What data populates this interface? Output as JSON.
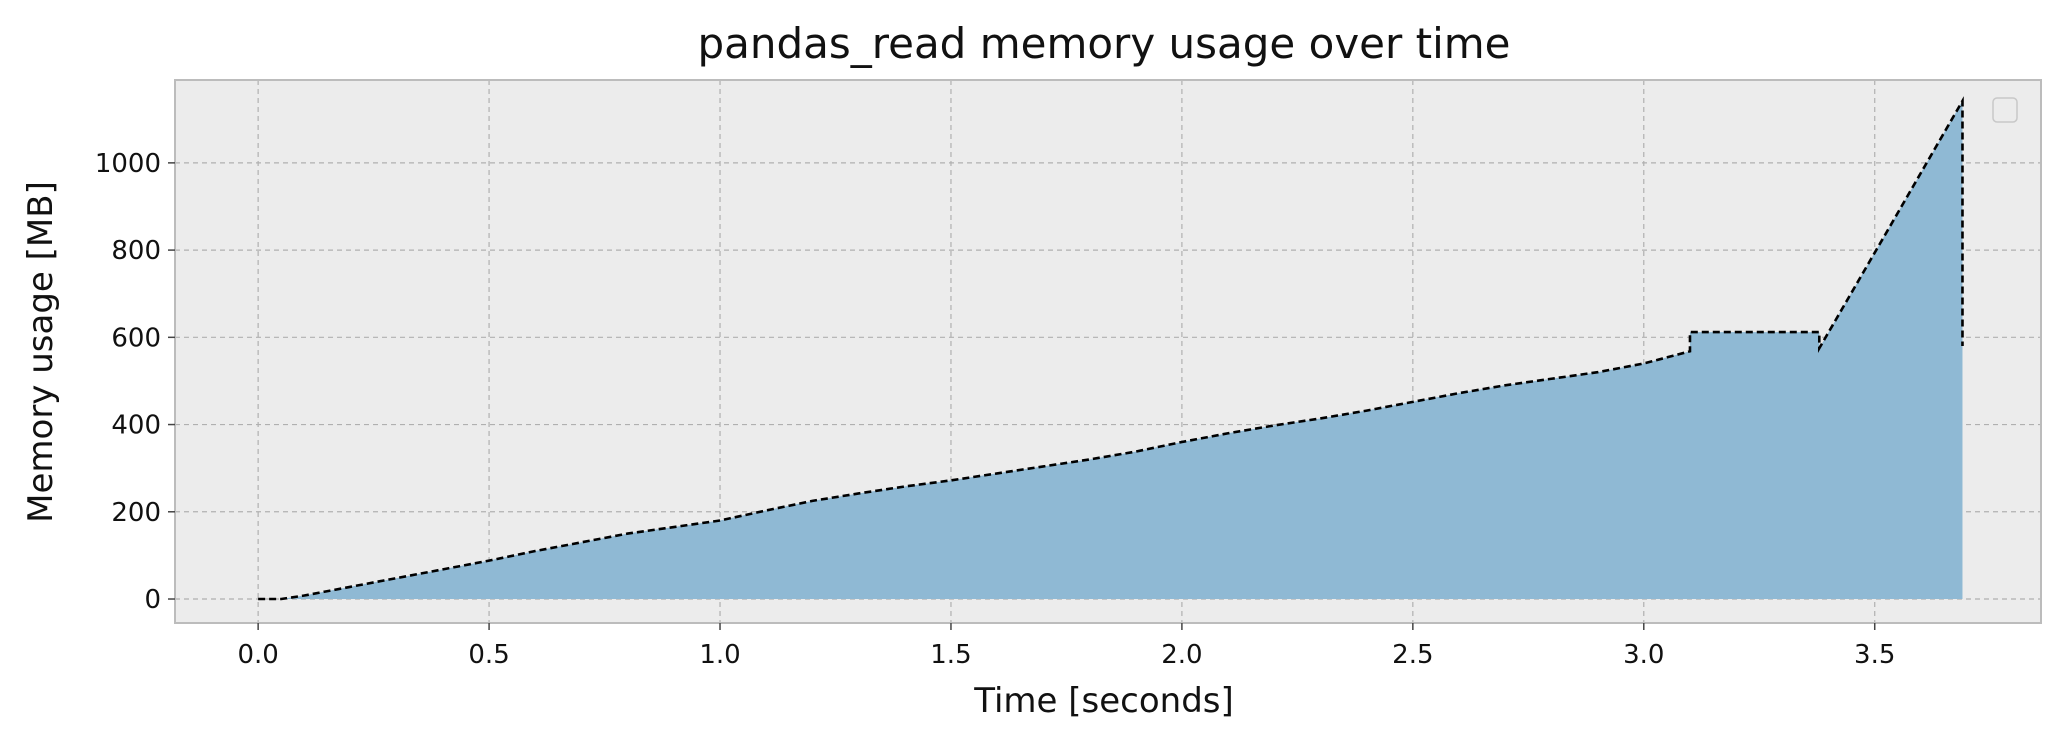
{
  "chart_data": {
    "type": "area",
    "title": "pandas_read memory usage over time",
    "xlabel": "Time [seconds]",
    "ylabel": "Memory usage [MB]",
    "xlim": [
      -0.18,
      3.86
    ],
    "ylim": [
      -55,
      1190
    ],
    "xticks": [
      0.0,
      0.5,
      1.0,
      1.5,
      2.0,
      2.5,
      3.0,
      3.5
    ],
    "xtick_labels": [
      "0.0",
      "0.5",
      "1.0",
      "1.5",
      "2.0",
      "2.5",
      "3.0",
      "3.5"
    ],
    "yticks": [
      0,
      200,
      400,
      600,
      800,
      1000
    ],
    "ytick_labels": [
      "0",
      "200",
      "400",
      "600",
      "800",
      "1000"
    ],
    "grid": true,
    "legend": {
      "placement": "top-right",
      "entries": []
    },
    "colors": {
      "fill": "#8fb9d4",
      "line": "#000000",
      "axes_bg": "#ececec",
      "spine": "#bcbcbc",
      "grid": "#b0b0b0"
    },
    "line_style": "dashed",
    "series": [
      {
        "x": [
          0.0,
          0.05,
          0.1,
          0.2,
          0.3,
          0.4,
          0.5,
          0.6,
          0.7,
          0.8,
          0.9,
          1.0,
          1.1,
          1.2,
          1.3,
          1.4,
          1.5,
          1.6,
          1.7,
          1.8,
          1.9,
          2.0,
          2.1,
          2.2,
          2.3,
          2.4,
          2.5,
          2.6,
          2.7,
          2.8,
          2.9,
          3.0,
          3.1,
          3.1,
          3.38,
          3.38,
          3.535,
          3.535,
          3.69,
          3.69
        ],
        "y": [
          0,
          0,
          8,
          28,
          48,
          68,
          88,
          110,
          130,
          150,
          165,
          180,
          203,
          225,
          242,
          258,
          272,
          288,
          304,
          320,
          338,
          360,
          380,
          398,
          414,
          432,
          452,
          472,
          490,
          505,
          520,
          540,
          568,
          612,
          612,
          575,
          858,
          858,
          1142,
          580
        ]
      }
    ]
  }
}
